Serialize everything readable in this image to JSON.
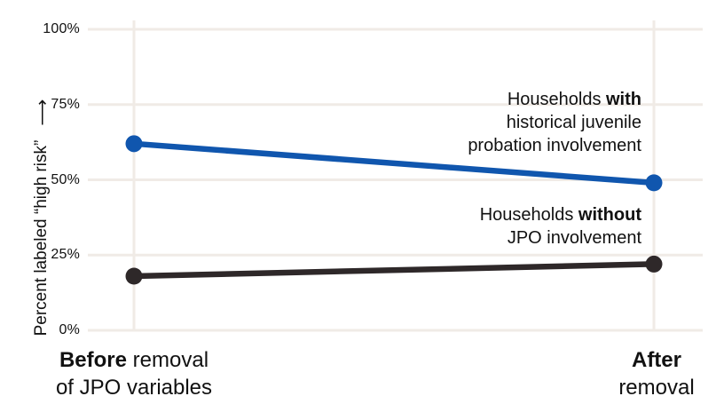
{
  "chart_data": {
    "type": "line",
    "title": "",
    "xlabel": "",
    "ylabel": "Percent labeled “high risk”",
    "categories": [
      "Before removal of JPO variables",
      "After removal"
    ],
    "series": [
      {
        "name": "Households with historical juvenile probation involvement",
        "color": "#1056AE",
        "values": [
          62,
          49
        ]
      },
      {
        "name": "Households without JPO involvement",
        "color": "#2E2829",
        "values": [
          18,
          22
        ]
      }
    ],
    "ylim": [
      0,
      100
    ],
    "yticks": [
      0,
      25,
      50,
      75,
      100
    ],
    "ytick_labels": [
      "0%",
      "25%",
      "50%",
      "75%",
      "100%"
    ],
    "grid": "on",
    "legend_position": "inline-annotations-right-aligned"
  },
  "y_axis": {
    "label": "Percent labeled “high risk”",
    "arrow": "⟶"
  },
  "annotations": {
    "with_jpo": {
      "prefix": "Households ",
      "bold": "with",
      "line2": "historical juvenile",
      "line3": "probation involvement"
    },
    "without_jpo": {
      "prefix": "Households ",
      "bold": "without",
      "line2": "JPO involvement"
    }
  },
  "x_labels": {
    "before": {
      "bold": "Before",
      "rest": " removal",
      "line2": "of JPO variables"
    },
    "after": {
      "bold": "After",
      "line2": "removal"
    }
  },
  "colors": {
    "with_line": "#1056AE",
    "without_line": "#2E2829",
    "gridline": "#F0EBE6",
    "text": "#111111"
  }
}
